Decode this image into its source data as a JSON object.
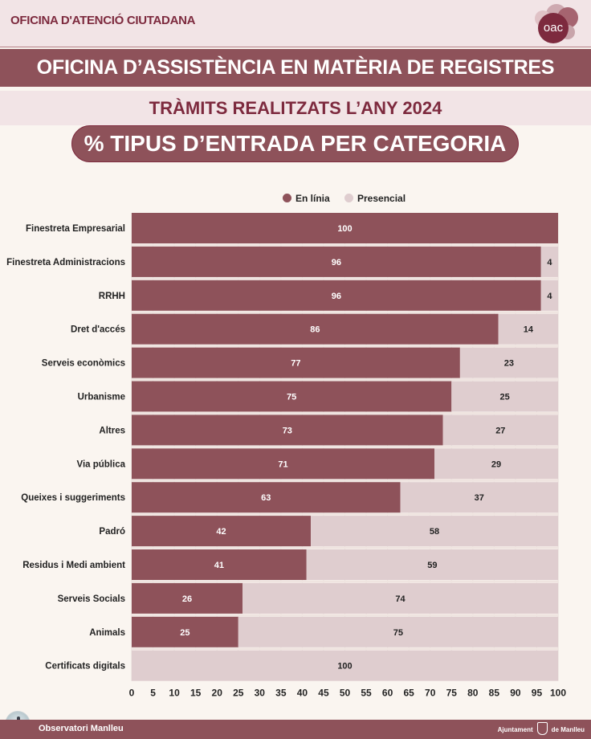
{
  "header": {
    "office_title": "OFICINA D'ATENCIÓ CIUTADANA",
    "logo_text": "oac"
  },
  "banner": {
    "title": "OFICINA D’ASSISTÈNCIA EN MATÈRIA DE REGISTRES",
    "subtitle": "TRÀMITS REALITZATS L’ANY 2024",
    "chart_heading": "% TIPUS D’ENTRADA PER CATEGORIA"
  },
  "colors": {
    "online": "#8e525a",
    "in_person": "#dfcdcf",
    "brand_dark": "#7d2a3e",
    "background": "#faf5f0"
  },
  "chart_data": {
    "type": "bar",
    "orientation": "horizontal",
    "stacked": true,
    "title": "% TIPUS D’ENTRADA PER CATEGORIA",
    "xlabel": "",
    "ylabel": "",
    "xlim": [
      0,
      100
    ],
    "xticks": [
      0,
      5,
      10,
      15,
      20,
      25,
      30,
      35,
      40,
      45,
      50,
      55,
      60,
      65,
      70,
      75,
      80,
      85,
      90,
      95,
      100
    ],
    "grid": true,
    "legend_position": "top-center",
    "categories": [
      "Finestreta Empresarial",
      "Finestreta Administracions",
      "RRHH",
      "Dret d'accés",
      "Serveis econòmics",
      "Urbanisme",
      "Altres",
      "Via pública",
      "Queixes i suggeriments",
      "Padró",
      "Residus i Medi ambient",
      "Serveis Socials",
      "Animals",
      "Certificats digitals"
    ],
    "series": [
      {
        "name": "En línia",
        "color": "#8e525a",
        "label_color": "#ffffff",
        "values": [
          100,
          96,
          96,
          86,
          77,
          75,
          73,
          71,
          63,
          42,
          41,
          26,
          25,
          0
        ]
      },
      {
        "name": "Presencial",
        "color": "#dfcdcf",
        "label_color": "#222222",
        "values": [
          0,
          4,
          4,
          14,
          23,
          25,
          27,
          29,
          37,
          58,
          59,
          74,
          75,
          100
        ]
      }
    ]
  },
  "footer": {
    "left_text": "Observatori Manlleu",
    "right_text_1": "Ajuntament",
    "right_text_2": "de Manlleu"
  }
}
